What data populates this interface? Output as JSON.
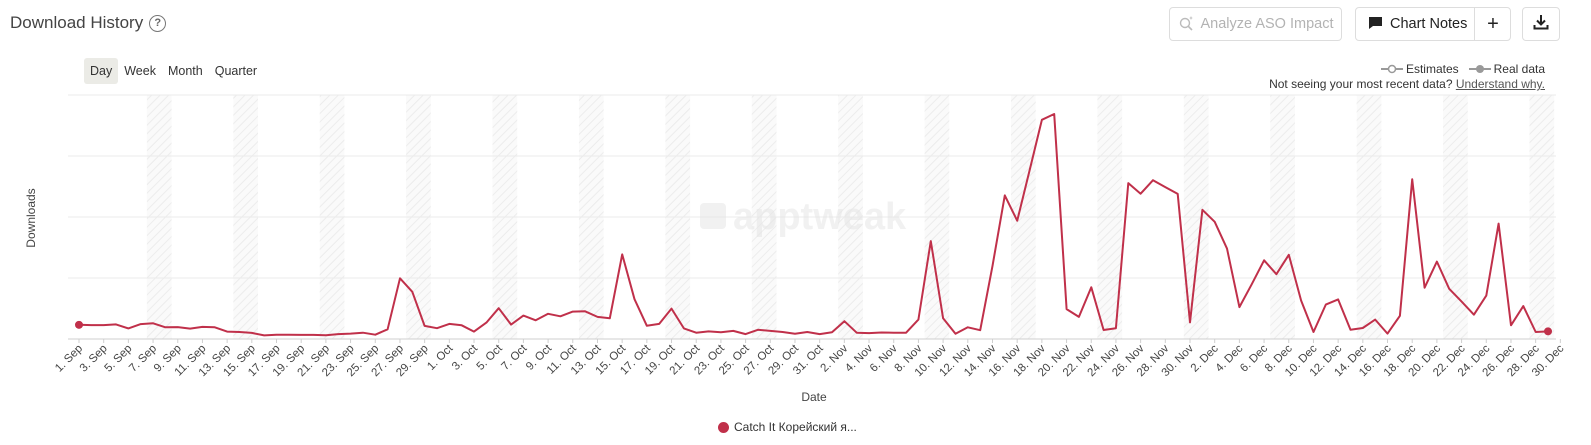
{
  "header": {
    "title": "Download History",
    "help_glyph": "?"
  },
  "toolbar": {
    "analyze_label": "Analyze ASO Impact",
    "chart_notes_label": "Chart Notes",
    "add_glyph": "+",
    "analyze_icon": "sparkle-icon",
    "notes_icon": "comment-icon",
    "download_icon": "download-icon"
  },
  "period": {
    "tabs": [
      "Day",
      "Week",
      "Month",
      "Quarter"
    ],
    "active": "Day"
  },
  "legend_top": {
    "estimates": "Estimates",
    "real": "Real data"
  },
  "note": {
    "text": "Not seeing your most recent data?",
    "link": "Understand why."
  },
  "watermark": "apptweak",
  "colors": {
    "series": "#c0304a",
    "grid": "#ebebeb",
    "weekend_band": "#f4f4f4"
  },
  "chart_data": {
    "type": "line",
    "xlabel": "Date",
    "ylabel": "Downloads",
    "x_tick_labels": [
      "1. Sep",
      "3. Sep",
      "5. Sep",
      "7. Sep",
      "9. Sep",
      "11. Sep",
      "13. Sep",
      "15. Sep",
      "17. Sep",
      "19. Sep",
      "21. Sep",
      "23. Sep",
      "25. Sep",
      "27. Sep",
      "29. Sep",
      "1. Oct",
      "3. Oct",
      "5. Oct",
      "7. Oct",
      "9. Oct",
      "11. Oct",
      "13. Oct",
      "15. Oct",
      "17. Oct",
      "19. Oct",
      "21. Oct",
      "23. Oct",
      "25. Oct",
      "27. Oct",
      "29. Oct",
      "31. Oct",
      "2. Nov",
      "4. Nov",
      "6. Nov",
      "8. Nov",
      "10. Nov",
      "12. Nov",
      "14. Nov",
      "16. Nov",
      "18. Nov",
      "20. Nov",
      "22. Nov",
      "24. Nov",
      "26. Nov",
      "28. Nov",
      "30. Nov",
      "2. Dec",
      "4. Dec",
      "6. Dec",
      "8. Dec",
      "10. Dec",
      "12. Dec",
      "14. Dec",
      "16. Dec",
      "18. Dec",
      "20. Dec",
      "22. Dec",
      "24. Dec",
      "26. Dec",
      "28. Dec",
      "30. Dec"
    ],
    "grid": true,
    "series": [
      {
        "name": "Catch It Корейский я...",
        "values": [
          6.3,
          6.2,
          6.2,
          6.5,
          4.7,
          6.6,
          7,
          5.2,
          5.3,
          4.6,
          5.4,
          5.2,
          3.3,
          3.1,
          2.7,
          1.6,
          1.9,
          1.9,
          1.8,
          1.8,
          1.7,
          2.2,
          2.4,
          2.8,
          1.9,
          4.3,
          27,
          21,
          5.8,
          4.8,
          6.7,
          6.1,
          3.3,
          7.3,
          13.7,
          6.4,
          10.4,
          8.3,
          11.2,
          10.1,
          12.2,
          12.3,
          9.8,
          9.2,
          37.6,
          17.7,
          5.9,
          6.7,
          13.5,
          4.7,
          2.8,
          3.4,
          3,
          3.6,
          2.2,
          4.1,
          3.6,
          3.1,
          2.3,
          3.1,
          2.2,
          3,
          7.9,
          2.8,
          2.6,
          2.9,
          2.8,
          2.8,
          8.6,
          43.5,
          9.2,
          2.3,
          5.2,
          3.9,
          32.5,
          63.8,
          52.6,
          74.8,
          97.4,
          100,
          13.3,
          9.8,
          23,
          4,
          4.8,
          69.3,
          64.6,
          70.6,
          67.5,
          64.5,
          7.4,
          57.4,
          52.1,
          40.2,
          14.2,
          24.3,
          35,
          28.8,
          37.4,
          17.1,
          3.1,
          15.3,
          17.6,
          4.1,
          4.9,
          8.6,
          2.4,
          10.3,
          71,
          22.8,
          34.4,
          22.3,
          16.6,
          10.8,
          19.3,
          51.3,
          6.1,
          14.6,
          3.1,
          3.4
        ]
      }
    ]
  }
}
